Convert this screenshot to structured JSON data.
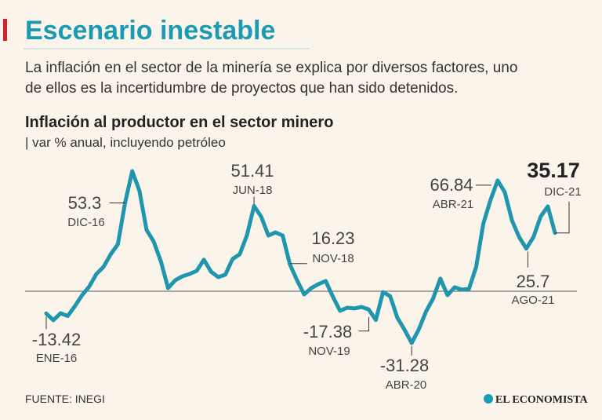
{
  "header": {
    "title": "Escenario inestable",
    "description": [
      "La inflación en el sector de la minería se explica por diversos factores, uno",
      "de ellos es la incertidumbre de proyectos que han sido detenidos."
    ]
  },
  "chart_data": {
    "type": "line",
    "title": "Inflación al productor en el sector minero",
    "subtitle": "| var % anual, incluyendo petróleo",
    "categories": [
      "ENE-16",
      null,
      null,
      null,
      null,
      null,
      null,
      null,
      null,
      null,
      null,
      "DIC-16",
      null,
      null,
      null,
      null,
      null,
      null,
      null,
      null,
      null,
      null,
      null,
      null,
      null,
      null,
      null,
      null,
      null,
      "JUN-18",
      null,
      null,
      null,
      null,
      "NOV-18",
      null,
      null,
      null,
      null,
      null,
      null,
      null,
      null,
      null,
      null,
      null,
      "NOV-19",
      null,
      null,
      null,
      null,
      "ABR-20",
      null,
      null,
      null,
      null,
      null,
      null,
      null,
      null,
      null,
      null,
      null,
      "ABR-21",
      null,
      null,
      null,
      "AGO-21",
      null,
      null,
      null,
      "DIC-21"
    ],
    "values": [
      -13.42,
      -17.5,
      -13.3,
      -15,
      -9,
      -2.4,
      2.8,
      10.4,
      14.7,
      22.3,
      28.4,
      53.3,
      72.5,
      60.7,
      37,
      29.9,
      18,
      1.9,
      6.6,
      9,
      10.4,
      12.3,
      19,
      11.8,
      8.5,
      10,
      19.4,
      22.3,
      33.6,
      51.41,
      45,
      33.6,
      35.5,
      33.6,
      16.23,
      6.6,
      -1.9,
      1.9,
      4.3,
      6.2,
      -3.3,
      -11.8,
      -10,
      -10.4,
      -9.5,
      -11,
      -17.38,
      -0.5,
      -3,
      -16,
      -23.2,
      -31.28,
      -23,
      -12.3,
      -4.3,
      7.6,
      -2.4,
      2.4,
      0.9,
      1.4,
      14.7,
      40.8,
      55,
      66.84,
      59.7,
      42.7,
      32.7,
      25.7,
      32.7,
      45,
      51.2,
      35.17
    ],
    "color": "#1f96ad",
    "ylim": [
      -42.2,
      81
    ],
    "source": "FUENTE: INEGI"
  },
  "brand": "EL ECONOMISTA"
}
